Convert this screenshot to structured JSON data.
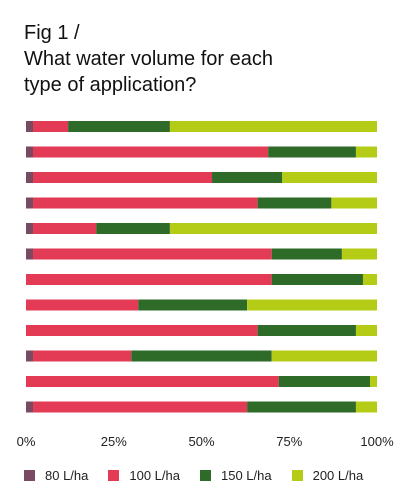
{
  "title": {
    "line1": "Fig 1 /",
    "line2": "What water volume for each",
    "line3": "type of application?"
  },
  "chart_data": {
    "type": "bar",
    "orientation": "horizontal",
    "stacked": true,
    "xlim": [
      0,
      100
    ],
    "x_ticks": [
      "0%",
      "25%",
      "50%",
      "75%",
      "100%"
    ],
    "grid": false,
    "legend_position": "bottom",
    "categories": [
      "",
      "",
      "",
      "",
      "",
      "",
      "",
      "",
      "",
      "",
      "",
      ""
    ],
    "series": [
      {
        "name": "80 L/ha",
        "color": "#7a4a62",
        "values": [
          2,
          2,
          2,
          2,
          2,
          2,
          0,
          0,
          0,
          2,
          0,
          2
        ]
      },
      {
        "name": "100 L/ha",
        "color": "#e33a55",
        "values": [
          10,
          67,
          51,
          64,
          18,
          68,
          70,
          32,
          66,
          28,
          72,
          61
        ]
      },
      {
        "name": "150 L/ha",
        "color": "#2e6b29",
        "values": [
          29,
          25,
          20,
          21,
          21,
          20,
          26,
          31,
          28,
          40,
          26,
          31
        ]
      },
      {
        "name": "200 L/ha",
        "color": "#b5cc16",
        "values": [
          59,
          6,
          27,
          13,
          59,
          10,
          4,
          37,
          6,
          30,
          2,
          6
        ]
      }
    ]
  }
}
